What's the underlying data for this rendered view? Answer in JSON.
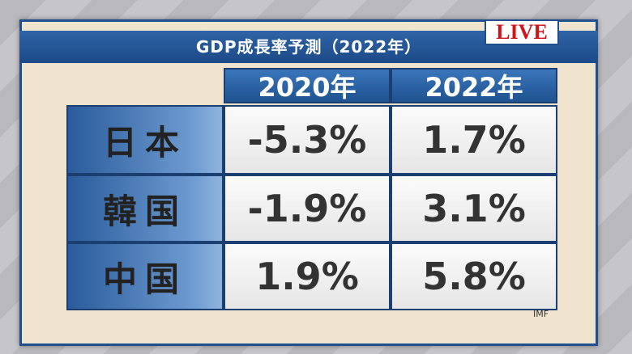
{
  "header": {
    "title": "GDP成長率予測（2022年）",
    "badge": "LIVE"
  },
  "table": {
    "columns": [
      "2020年",
      "2022年"
    ],
    "rows": [
      [
        "日本",
        "-5.3%",
        "1.7%"
      ],
      [
        "韓国",
        "-1.9%",
        "3.1%"
      ],
      [
        "中国",
        "1.9%",
        "5.8%"
      ]
    ]
  },
  "source": "IMF"
}
